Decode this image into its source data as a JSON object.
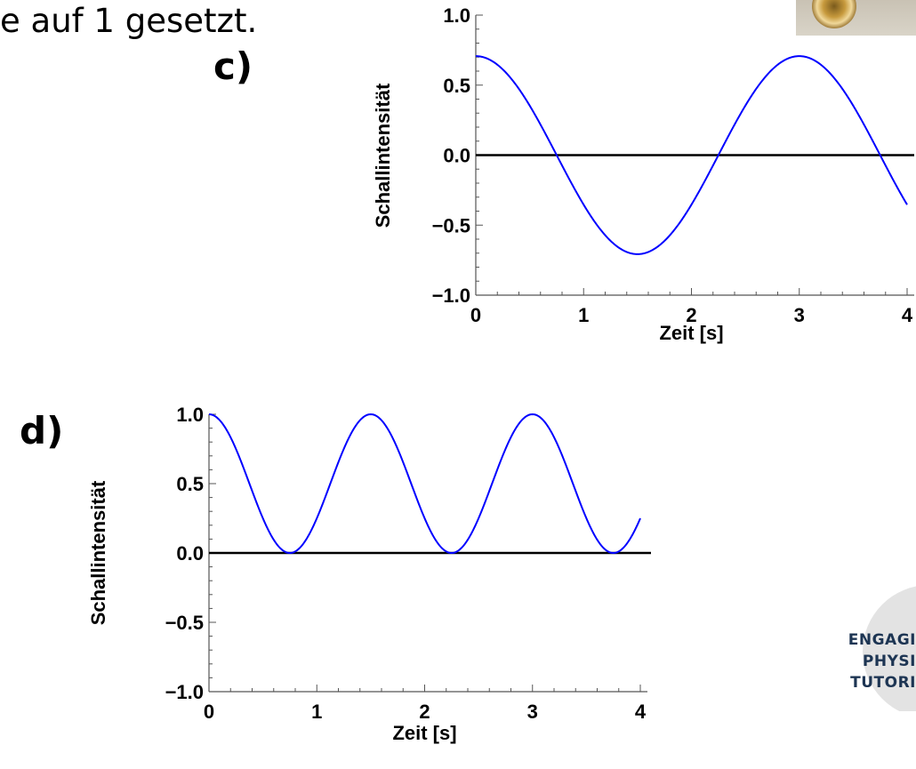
{
  "caption": "e auf 1 gesetzt.",
  "panels": {
    "c": "c)",
    "d": "d)"
  },
  "logo": {
    "line1": "ENGAGI",
    "line2": "PHYSI",
    "line3": "TUTORI"
  },
  "colors": {
    "curve": "#0000ff",
    "zero_line": "#000000",
    "logo_text": "#1d3553"
  },
  "chart_data": [
    {
      "type": "line",
      "panel": "c)",
      "xlabel": "Zeit [s]",
      "ylabel": "Schallintensität",
      "xlim": [
        0,
        4
      ],
      "ylim": [
        -1.0,
        1.0
      ],
      "x_ticks": [
        0,
        1,
        2,
        3,
        4
      ],
      "x_tick_labels": [
        "0",
        "1",
        "2",
        "3",
        "4"
      ],
      "y_ticks": [
        -1.0,
        -0.5,
        0.0,
        0.5,
        1.0
      ],
      "y_tick_labels": [
        "−1.0",
        "−0.5",
        "0.0",
        "0.5",
        "1.0"
      ],
      "horizontal_line_y": 0,
      "grid": false,
      "series": [
        {
          "function": "0.707*cos(2*pi*t/3)",
          "amplitude": 0.707,
          "period": 3,
          "t_range": [
            0,
            4
          ]
        }
      ]
    },
    {
      "type": "line",
      "panel": "d)",
      "xlabel": "Zeit [s]",
      "ylabel": "Schallintensität",
      "xlim": [
        0,
        4
      ],
      "ylim": [
        -1.0,
        1.0
      ],
      "x_ticks": [
        0,
        1,
        2,
        3,
        4
      ],
      "x_tick_labels": [
        "0",
        "1",
        "2",
        "3",
        "4"
      ],
      "y_ticks": [
        -1.0,
        -0.5,
        0.0,
        0.5,
        1.0
      ],
      "y_tick_labels": [
        "−1.0",
        "−0.5",
        "0.0",
        "0.5",
        "1.0"
      ],
      "horizontal_line_y": 0,
      "grid": false,
      "series": [
        {
          "function": "cos(2*pi*t/3)^2",
          "amplitude": 1.0,
          "period": 1.5,
          "t_range": [
            0,
            4
          ]
        }
      ]
    }
  ]
}
